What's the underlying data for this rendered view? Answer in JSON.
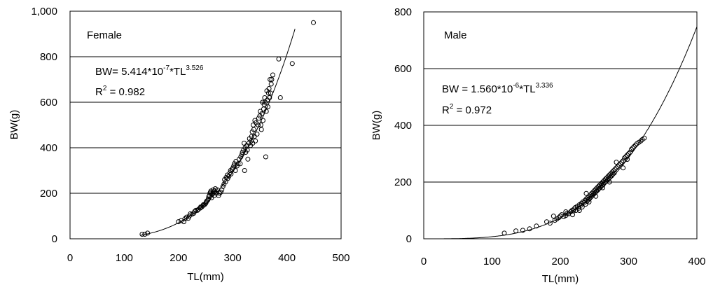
{
  "chart_data": [
    {
      "type": "scatter",
      "panel_label": "Female",
      "xlabel": "TL(mm)",
      "ylabel": "BW(g)",
      "xlim": [
        0,
        500
      ],
      "ylim": [
        0,
        1000
      ],
      "xticks": [
        0,
        100,
        200,
        300,
        400,
        500
      ],
      "yticks": [
        0,
        200,
        400,
        600,
        800,
        1000
      ],
      "xtick_labels": [
        "0",
        "100",
        "200",
        "300",
        "400",
        "500"
      ],
      "ytick_labels": [
        "0",
        "200",
        "400",
        "600",
        "800",
        "1,000"
      ],
      "gridlines_y": [
        200,
        400,
        600,
        800
      ],
      "equation": {
        "prefix": "BW= 5.414*10",
        "exp1": "-7",
        "middle": "*TL",
        "exp2": "3.526"
      },
      "r2": {
        "prefix": "R",
        "sup": "2",
        "suffix": " = 0.982"
      },
      "fit": {
        "a": 5.414e-07,
        "b": 3.526,
        "x_range": [
          130,
          415
        ]
      },
      "points": [
        [
          133,
          20
        ],
        [
          138,
          20
        ],
        [
          143,
          25
        ],
        [
          200,
          75
        ],
        [
          205,
          80
        ],
        [
          210,
          75
        ],
        [
          212,
          88
        ],
        [
          215,
          95
        ],
        [
          218,
          90
        ],
        [
          220,
          100
        ],
        [
          222,
          110
        ],
        [
          225,
          108
        ],
        [
          228,
          112
        ],
        [
          230,
          120
        ],
        [
          232,
          125
        ],
        [
          235,
          125
        ],
        [
          237,
          130
        ],
        [
          240,
          135
        ],
        [
          241,
          140
        ],
        [
          243,
          140
        ],
        [
          245,
          145
        ],
        [
          246,
          150
        ],
        [
          248,
          150
        ],
        [
          250,
          155
        ],
        [
          251,
          160
        ],
        [
          252,
          165
        ],
        [
          254,
          170
        ],
        [
          255,
          175
        ],
        [
          256,
          185
        ],
        [
          257,
          190
        ],
        [
          258,
          200
        ],
        [
          259,
          205
        ],
        [
          260,
          210
        ],
        [
          261,
          180
        ],
        [
          262,
          195
        ],
        [
          263,
          200
        ],
        [
          264,
          215
        ],
        [
          265,
          205
        ],
        [
          266,
          190
        ],
        [
          267,
          210
        ],
        [
          268,
          220
        ],
        [
          270,
          200
        ],
        [
          272,
          215
        ],
        [
          274,
          190
        ],
        [
          276,
          200
        ],
        [
          278,
          205
        ],
        [
          280,
          215
        ],
        [
          282,
          230
        ],
        [
          284,
          240
        ],
        [
          285,
          260
        ],
        [
          287,
          250
        ],
        [
          288,
          270
        ],
        [
          290,
          280
        ],
        [
          291,
          265
        ],
        [
          293,
          275
        ],
        [
          295,
          290
        ],
        [
          296,
          300
        ],
        [
          297,
          285
        ],
        [
          299,
          305
        ],
        [
          300,
          310
        ],
        [
          302,
          320
        ],
        [
          303,
          330
        ],
        [
          305,
          300
        ],
        [
          306,
          340
        ],
        [
          308,
          320
        ],
        [
          310,
          330
        ],
        [
          312,
          350
        ],
        [
          314,
          330
        ],
        [
          315,
          360
        ],
        [
          317,
          370
        ],
        [
          318,
          380
        ],
        [
          320,
          390
        ],
        [
          321,
          420
        ],
        [
          322,
          300
        ],
        [
          323,
          400
        ],
        [
          324,
          380
        ],
        [
          326,
          410
        ],
        [
          327,
          390
        ],
        [
          328,
          350
        ],
        [
          330,
          420
        ],
        [
          331,
          440
        ],
        [
          333,
          410
        ],
        [
          334,
          430
        ],
        [
          335,
          450
        ],
        [
          336,
          470
        ],
        [
          337,
          420
        ],
        [
          338,
          500
        ],
        [
          339,
          480
        ],
        [
          340,
          450
        ],
        [
          341,
          520
        ],
        [
          342,
          430
        ],
        [
          343,
          510
        ],
        [
          345,
          460
        ],
        [
          347,
          500
        ],
        [
          348,
          530
        ],
        [
          350,
          540
        ],
        [
          351,
          560
        ],
        [
          352,
          500
        ],
        [
          353,
          480
        ],
        [
          354,
          550
        ],
        [
          355,
          600
        ],
        [
          356,
          520
        ],
        [
          357,
          570
        ],
        [
          358,
          590
        ],
        [
          359,
          620
        ],
        [
          360,
          600
        ],
        [
          361,
          360
        ],
        [
          362,
          560
        ],
        [
          363,
          650
        ],
        [
          364,
          610
        ],
        [
          365,
          580
        ],
        [
          366,
          640
        ],
        [
          367,
          660
        ],
        [
          368,
          620
        ],
        [
          369,
          700
        ],
        [
          370,
          640
        ],
        [
          371,
          680
        ],
        [
          372,
          700
        ],
        [
          374,
          720
        ],
        [
          385,
          790
        ],
        [
          388,
          620
        ],
        [
          410,
          770
        ],
        [
          449,
          950
        ]
      ]
    },
    {
      "type": "scatter",
      "panel_label": "Male",
      "xlabel": "TL(mm)",
      "ylabel": "BW(g)",
      "xlim": [
        0,
        400
      ],
      "ylim": [
        0,
        800
      ],
      "xticks": [
        0,
        100,
        200,
        300,
        400
      ],
      "yticks": [
        0,
        200,
        400,
        600,
        800
      ],
      "xtick_labels": [
        "0",
        "100",
        "200",
        "300",
        "400"
      ],
      "ytick_labels": [
        "0",
        "200",
        "400",
        "600",
        "800"
      ],
      "gridlines_y": [
        200,
        400,
        600
      ],
      "equation": {
        "prefix": "BW = 1.560*10",
        "exp1": "-6",
        "middle": "*TL",
        "exp2": "3.336"
      },
      "r2": {
        "prefix": "R",
        "sup": "2",
        "suffix": " = 0.972"
      },
      "fit": {
        "a": 1.56e-06,
        "b": 3.336,
        "x_range": [
          0,
          400
        ]
      },
      "points": [
        [
          118,
          20
        ],
        [
          135,
          28
        ],
        [
          145,
          30
        ],
        [
          155,
          35
        ],
        [
          165,
          45
        ],
        [
          180,
          60
        ],
        [
          185,
          55
        ],
        [
          190,
          80
        ],
        [
          192,
          65
        ],
        [
          195,
          70
        ],
        [
          198,
          75
        ],
        [
          200,
          80
        ],
        [
          202,
          85
        ],
        [
          205,
          78
        ],
        [
          208,
          82
        ],
        [
          210,
          90
        ],
        [
          212,
          88
        ],
        [
          215,
          95
        ],
        [
          217,
          100
        ],
        [
          219,
          98
        ],
        [
          220,
          105
        ],
        [
          222,
          110
        ],
        [
          223,
          100
        ],
        [
          225,
          115
        ],
        [
          227,
          108
        ],
        [
          228,
          120
        ],
        [
          230,
          118
        ],
        [
          231,
          125
        ],
        [
          232,
          112
        ],
        [
          233,
          130
        ],
        [
          235,
          128
        ],
        [
          236,
          135
        ],
        [
          237,
          122
        ],
        [
          238,
          140
        ],
        [
          239,
          132
        ],
        [
          240,
          145
        ],
        [
          241,
          138
        ],
        [
          242,
          150
        ],
        [
          243,
          142
        ],
        [
          244,
          155
        ],
        [
          245,
          148
        ],
        [
          246,
          160
        ],
        [
          247,
          152
        ],
        [
          248,
          165
        ],
        [
          249,
          158
        ],
        [
          250,
          170
        ],
        [
          251,
          162
        ],
        [
          252,
          175
        ],
        [
          253,
          168
        ],
        [
          254,
          180
        ],
        [
          255,
          172
        ],
        [
          256,
          185
        ],
        [
          257,
          178
        ],
        [
          258,
          190
        ],
        [
          259,
          182
        ],
        [
          260,
          195
        ],
        [
          261,
          188
        ],
        [
          262,
          200
        ],
        [
          263,
          192
        ],
        [
          264,
          205
        ],
        [
          265,
          198
        ],
        [
          266,
          210
        ],
        [
          267,
          202
        ],
        [
          268,
          215
        ],
        [
          269,
          208
        ],
        [
          270,
          220
        ],
        [
          271,
          212
        ],
        [
          272,
          225
        ],
        [
          273,
          218
        ],
        [
          274,
          230
        ],
        [
          275,
          222
        ],
        [
          276,
          235
        ],
        [
          277,
          228
        ],
        [
          278,
          240
        ],
        [
          279,
          232
        ],
        [
          280,
          245
        ],
        [
          282,
          250
        ],
        [
          284,
          255
        ],
        [
          286,
          260
        ],
        [
          288,
          265
        ],
        [
          290,
          270
        ],
        [
          292,
          275
        ],
        [
          294,
          285
        ],
        [
          296,
          290
        ],
        [
          298,
          295
        ],
        [
          300,
          300
        ],
        [
          302,
          305
        ],
        [
          304,
          315
        ],
        [
          306,
          320
        ],
        [
          308,
          325
        ],
        [
          310,
          330
        ],
        [
          312,
          335
        ],
        [
          315,
          340
        ],
        [
          318,
          345
        ],
        [
          320,
          350
        ],
        [
          323,
          355
        ],
        [
          238,
          160
        ],
        [
          242,
          130
        ],
        [
          252,
          150
        ],
        [
          262,
          180
        ],
        [
          272,
          200
        ],
        [
          282,
          270
        ],
        [
          292,
          250
        ],
        [
          298,
          280
        ],
        [
          228,
          100
        ],
        [
          218,
          85
        ],
        [
          208,
          95
        ]
      ]
    }
  ]
}
